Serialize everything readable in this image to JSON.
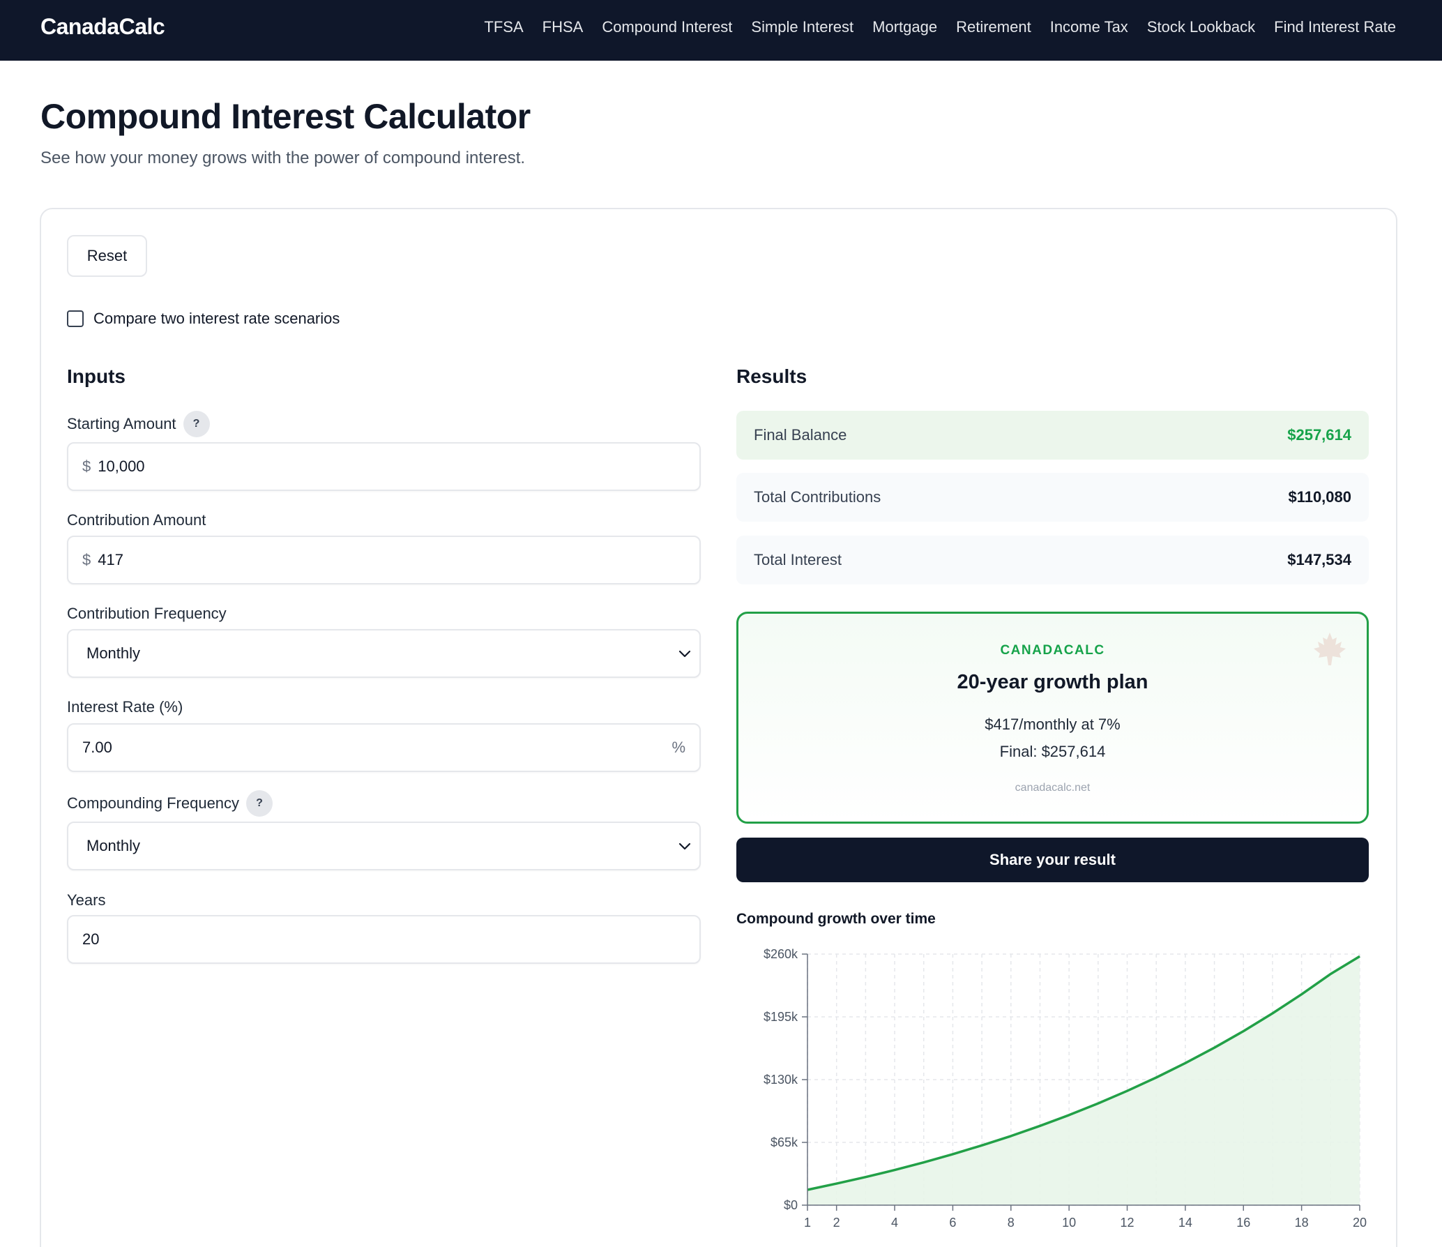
{
  "header": {
    "brand": "CanadaCalc",
    "nav": [
      "TFSA",
      "FHSA",
      "Compound Interest",
      "Simple Interest",
      "Mortgage",
      "Retirement",
      "Income Tax",
      "Stock Lookback",
      "Find Interest Rate"
    ]
  },
  "page": {
    "title": "Compound Interest Calculator",
    "subtitle": "See how your money grows with the power of compound interest."
  },
  "controls": {
    "reset_label": "Reset",
    "compare_label": "Compare two interest rate scenarios",
    "compare_checked": false
  },
  "inputs": {
    "heading": "Inputs",
    "starting_amount": {
      "label": "Starting Amount",
      "prefix": "$",
      "value": "10,000",
      "help": "?"
    },
    "contribution_amount": {
      "label": "Contribution Amount",
      "prefix": "$",
      "value": "417"
    },
    "contribution_frequency": {
      "label": "Contribution Frequency",
      "value": "Monthly"
    },
    "interest_rate": {
      "label": "Interest Rate (%)",
      "value": "7.00",
      "suffix": "%"
    },
    "compounding_frequency": {
      "label": "Compounding Frequency",
      "value": "Monthly",
      "help": "?"
    },
    "years": {
      "label": "Years",
      "value": "20"
    }
  },
  "results": {
    "heading": "Results",
    "final_balance": {
      "label": "Final Balance",
      "value": "$257,614"
    },
    "total_contributions": {
      "label": "Total Contributions",
      "value": "$110,080"
    },
    "total_interest": {
      "label": "Total Interest",
      "value": "$147,534"
    }
  },
  "plan_card": {
    "brand": "CANADACALC",
    "title": "20-year growth plan",
    "line1": "$417/monthly at 7%",
    "line2": "Final: $257,614",
    "site": "canadacalc.net",
    "icon": "maple-leaf-icon"
  },
  "share": {
    "label": "Share your result"
  },
  "colors": {
    "navbar": "#0f172a",
    "accent_green": "#16a34a",
    "final_bg": "#ecf6ec",
    "line": "#22a047",
    "fill": "#e8f5e9"
  },
  "chart": {
    "title": "Compound growth over time"
  },
  "chart_data": {
    "type": "area",
    "title": "Compound growth over time",
    "xlabel": "",
    "ylabel": "",
    "x": [
      1,
      2,
      3,
      4,
      5,
      6,
      7,
      8,
      9,
      10,
      11,
      12,
      13,
      14,
      15,
      16,
      17,
      18,
      19,
      20
    ],
    "series": [
      {
        "values": [
          15900,
          22300,
          29100,
          36400,
          44300,
          52800,
          61900,
          71600,
          82100,
          93300,
          105400,
          118300,
          132200,
          147100,
          163100,
          180200,
          198600,
          218300,
          239400,
          257614
        ]
      }
    ],
    "x_ticks": [
      1,
      2,
      4,
      6,
      8,
      10,
      12,
      14,
      16,
      18,
      20
    ],
    "y_ticks": [
      0,
      65000,
      130000,
      195000,
      260000
    ],
    "y_tick_labels": [
      "$0",
      "$65k",
      "$130k",
      "$195k",
      "$260k"
    ],
    "xlim": [
      1,
      20
    ],
    "ylim": [
      0,
      260000
    ],
    "grid": true,
    "legend": "none"
  }
}
